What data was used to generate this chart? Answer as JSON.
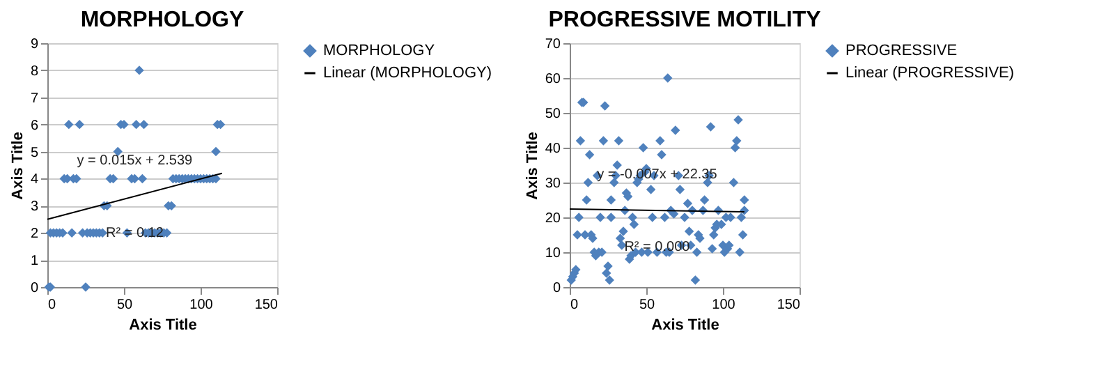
{
  "chart_data": [
    {
      "type": "scatter",
      "title": "MORPHOLOGY",
      "xlabel": "Axis Title",
      "ylabel": "Axis Title",
      "xlim": [
        0,
        150
      ],
      "xticks": [
        0,
        50,
        100,
        150
      ],
      "ylim": [
        0,
        9
      ],
      "yticks": [
        0,
        1,
        2,
        3,
        4,
        5,
        6,
        7,
        8,
        9
      ],
      "grid": "y",
      "legend": "right",
      "series": [
        {
          "name": "MORPHOLOGY",
          "color": "#4f81bd",
          "marker": "diamond",
          "x": [
            1,
            2,
            25,
            2,
            4,
            6,
            8,
            10,
            16,
            23,
            26,
            28,
            30,
            32,
            34,
            36,
            52,
            64,
            66,
            68,
            70,
            72,
            74,
            76,
            78,
            37,
            39,
            79,
            81,
            11,
            13,
            17,
            19,
            41,
            43,
            55,
            57,
            62,
            82,
            84,
            86,
            88,
            90,
            92,
            94,
            96,
            98,
            100,
            102,
            104,
            106,
            108,
            110,
            46,
            110,
            14,
            21,
            48,
            50,
            58,
            63,
            111,
            113,
            60
          ],
          "values": [
            0,
            0,
            0,
            2,
            2,
            2,
            2,
            2,
            2,
            2,
            2,
            2,
            2,
            2,
            2,
            2,
            2,
            2,
            2,
            2,
            2,
            2,
            2,
            2,
            2,
            3,
            3,
            3,
            3,
            4,
            4,
            4,
            4,
            4,
            4,
            4,
            4,
            4,
            4,
            4,
            4,
            4,
            4,
            4,
            4,
            4,
            4,
            4,
            4,
            4,
            4,
            4,
            4,
            5,
            5,
            6,
            6,
            6,
            6,
            6,
            6,
            6,
            6,
            8
          ]
        },
        {
          "name": "Linear (MORPHOLOGY)",
          "type": "line",
          "color": "#000000",
          "x": [
            0,
            114
          ],
          "values": [
            2.5,
            4.2
          ]
        }
      ],
      "annotations": [
        "y = 0.015x + 2.539",
        "R² = 0.12"
      ]
    },
    {
      "type": "scatter",
      "title": "PROGRESSIVE MOTILITY",
      "xlabel": "Axis Title",
      "ylabel": "Axis Title",
      "xlim": [
        0,
        150
      ],
      "xticks": [
        0,
        50,
        100,
        150
      ],
      "ylim": [
        0,
        70
      ],
      "yticks": [
        0,
        10,
        20,
        30,
        40,
        50,
        60,
        70
      ],
      "grid": "y",
      "legend": "right",
      "series": [
        {
          "name": "PROGRESSIVE",
          "color": "#4f81bd",
          "marker": "diamond",
          "x": [
            1,
            2,
            3,
            4,
            5,
            6,
            7,
            8,
            9,
            10,
            11,
            12,
            13,
            14,
            15,
            16,
            17,
            18,
            19,
            20,
            21,
            22,
            23,
            24,
            25,
            26,
            27,
            27,
            29,
            30,
            31,
            32,
            33,
            34,
            35,
            36,
            37,
            38,
            39,
            40,
            41,
            42,
            43,
            44,
            45,
            46,
            47,
            48,
            49,
            50,
            51,
            53,
            54,
            55,
            57,
            59,
            60,
            62,
            63,
            64,
            65,
            66,
            68,
            69,
            71,
            72,
            73,
            75,
            77,
            78,
            79,
            80,
            82,
            83,
            84,
            85,
            87,
            88,
            90,
            91,
            92,
            93,
            94,
            95,
            96,
            97,
            99,
            100,
            101,
            102,
            103,
            104,
            105,
            107,
            108,
            109,
            110,
            111,
            112,
            113,
            114,
            114
          ],
          "values": [
            2,
            3,
            4,
            5,
            15,
            20,
            42,
            53,
            53,
            15,
            25,
            30,
            38,
            15,
            14,
            10,
            9,
            32,
            10,
            20,
            10,
            42,
            52,
            4,
            6,
            2,
            20,
            25,
            30,
            32,
            35,
            42,
            14,
            12,
            16,
            22,
            27,
            26,
            8,
            9,
            20,
            18,
            10,
            30,
            31,
            32,
            10,
            40,
            33,
            34,
            10,
            28,
            20,
            32,
            10,
            42,
            38,
            20,
            10,
            60,
            10,
            22,
            21,
            45,
            32,
            28,
            12,
            20,
            24,
            16,
            12,
            22,
            2,
            10,
            15,
            14,
            22,
            25,
            30,
            32,
            46,
            11,
            15,
            17,
            18,
            22,
            18,
            12,
            10,
            20,
            11,
            12,
            20,
            30,
            40,
            42,
            48,
            10,
            20,
            15,
            25,
            22
          ]
        },
        {
          "name": "Linear (PROGRESSIVE)",
          "type": "line",
          "color": "#000000",
          "x": [
            0,
            114
          ],
          "values": [
            22.4,
            21.6
          ]
        }
      ],
      "annotations": [
        "y = -0.007x + 22.35",
        "R² = 0.000"
      ]
    }
  ]
}
